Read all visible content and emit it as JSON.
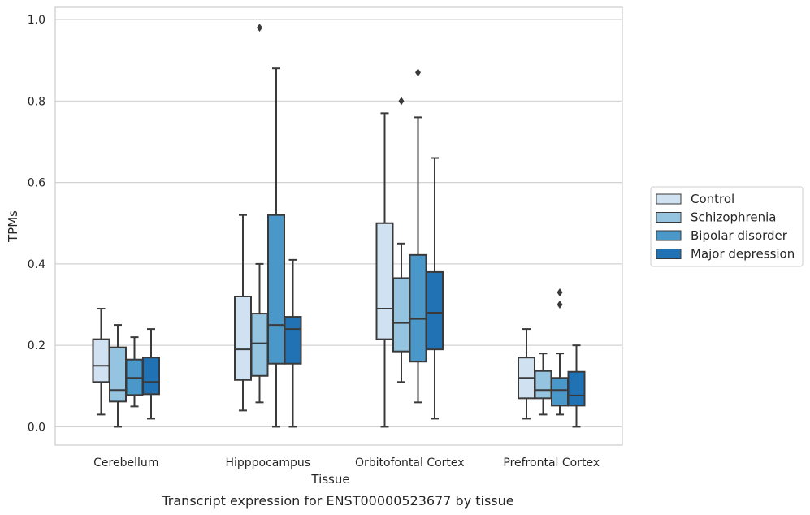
{
  "chart_data": {
    "type": "box",
    "caption": "Transcript expression for ENST00000523677 by tissue",
    "xlabel": "Tissue",
    "ylabel": "TPMs",
    "ylim": [
      -0.045,
      1.03
    ],
    "yticks": [
      0.0,
      0.2,
      0.4,
      0.6,
      0.8,
      1.0
    ],
    "ytick_labels": [
      "0.0",
      "0.2",
      "0.4",
      "0.6",
      "0.8",
      "1.0"
    ],
    "grid": true,
    "legend_position": "right",
    "categories": [
      "Cerebellum",
      "Hipppocampus",
      "Orbitofontal Cortex",
      "Prefrontal Cortex"
    ],
    "series": [
      {
        "name": "Control",
        "color": "#d0e1f2",
        "boxes": [
          {
            "whisker_low": 0.03,
            "q1": 0.11,
            "median": 0.15,
            "q3": 0.215,
            "whisker_high": 0.29,
            "outliers": []
          },
          {
            "whisker_low": 0.04,
            "q1": 0.115,
            "median": 0.19,
            "q3": 0.32,
            "whisker_high": 0.52,
            "outliers": []
          },
          {
            "whisker_low": 0.0,
            "q1": 0.215,
            "median": 0.29,
            "q3": 0.5,
            "whisker_high": 0.77,
            "outliers": []
          },
          {
            "whisker_low": 0.02,
            "q1": 0.07,
            "median": 0.12,
            "q3": 0.17,
            "whisker_high": 0.24,
            "outliers": []
          }
        ]
      },
      {
        "name": "Schizophrenia",
        "color": "#94c4df",
        "boxes": [
          {
            "whisker_low": 0.0,
            "q1": 0.062,
            "median": 0.09,
            "q3": 0.195,
            "whisker_high": 0.25,
            "outliers": []
          },
          {
            "whisker_low": 0.06,
            "q1": 0.125,
            "median": 0.205,
            "q3": 0.278,
            "whisker_high": 0.4,
            "outliers": [
              0.98
            ]
          },
          {
            "whisker_low": 0.11,
            "q1": 0.185,
            "median": 0.255,
            "q3": 0.365,
            "whisker_high": 0.45,
            "outliers": [
              0.8
            ]
          },
          {
            "whisker_low": 0.03,
            "q1": 0.07,
            "median": 0.09,
            "q3": 0.137,
            "whisker_high": 0.18,
            "outliers": []
          }
        ]
      },
      {
        "name": "Bipolar disorder",
        "color": "#4a98c9",
        "boxes": [
          {
            "whisker_low": 0.05,
            "q1": 0.078,
            "median": 0.12,
            "q3": 0.165,
            "whisker_high": 0.22,
            "outliers": []
          },
          {
            "whisker_low": 0.0,
            "q1": 0.155,
            "median": 0.25,
            "q3": 0.52,
            "whisker_high": 0.88,
            "outliers": []
          },
          {
            "whisker_low": 0.06,
            "q1": 0.16,
            "median": 0.265,
            "q3": 0.422,
            "whisker_high": 0.76,
            "outliers": [
              0.87
            ]
          },
          {
            "whisker_low": 0.03,
            "q1": 0.052,
            "median": 0.09,
            "q3": 0.12,
            "whisker_high": 0.18,
            "outliers": [
              0.3,
              0.33
            ]
          }
        ]
      },
      {
        "name": "Major depression",
        "color": "#2171b5",
        "boxes": [
          {
            "whisker_low": 0.02,
            "q1": 0.08,
            "median": 0.11,
            "q3": 0.17,
            "whisker_high": 0.24,
            "outliers": []
          },
          {
            "whisker_low": 0.0,
            "q1": 0.155,
            "median": 0.24,
            "q3": 0.27,
            "whisker_high": 0.41,
            "outliers": []
          },
          {
            "whisker_low": 0.02,
            "q1": 0.19,
            "median": 0.28,
            "q3": 0.38,
            "whisker_high": 0.66,
            "outliers": []
          },
          {
            "whisker_low": 0.0,
            "q1": 0.052,
            "median": 0.077,
            "q3": 0.135,
            "whisker_high": 0.2,
            "outliers": []
          }
        ]
      }
    ]
  }
}
